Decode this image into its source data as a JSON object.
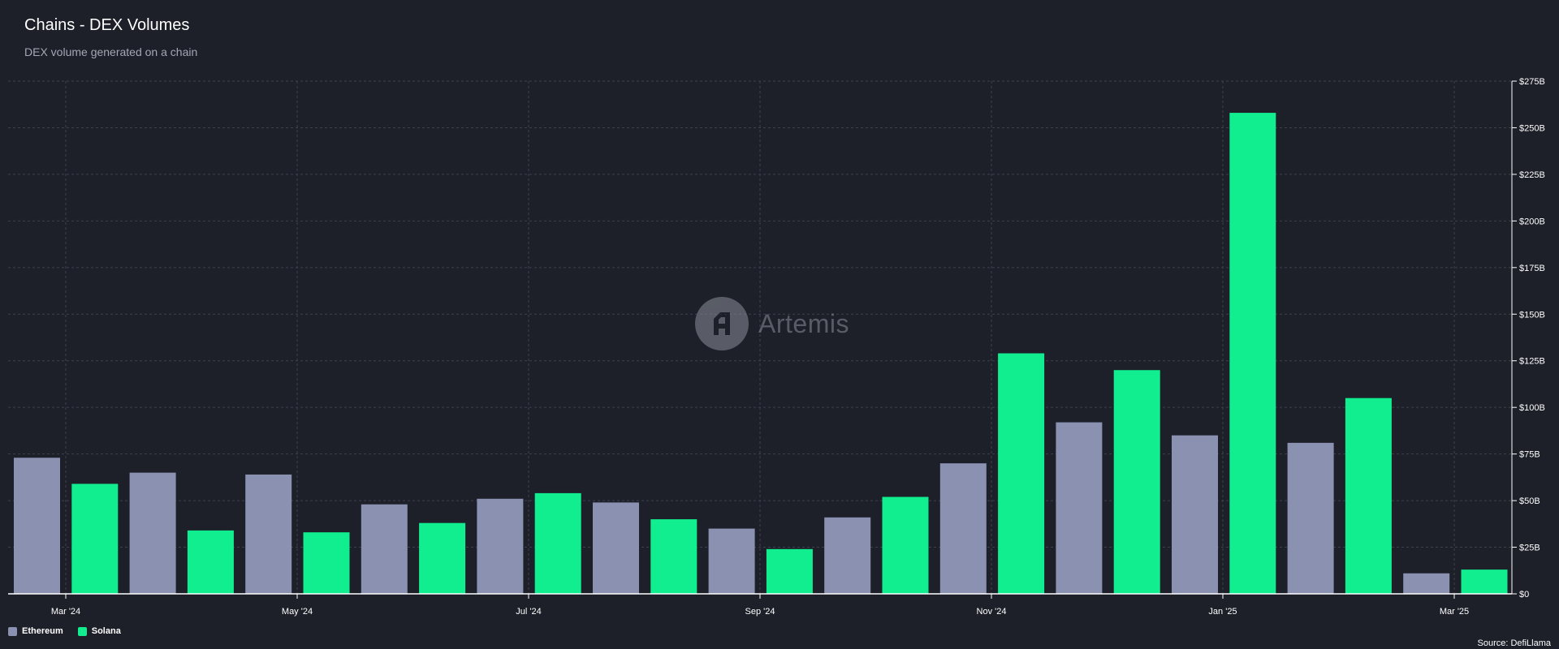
{
  "header": {
    "title": "Chains - DEX Volumes",
    "subtitle": "DEX volume generated on a chain"
  },
  "watermark": {
    "text": "Artemis",
    "icon": "artemis-logo-icon"
  },
  "legend": [
    {
      "label": "Ethereum",
      "color": "#8b91b1"
    },
    {
      "label": "Solana",
      "color": "#11ee8f"
    }
  ],
  "source": "Source: DefiLlama",
  "colors": {
    "background": "#1d1f29",
    "ethereum": "#8b91b1",
    "solana": "#11ee8f"
  },
  "chart_data": {
    "type": "bar",
    "title": "Chains - DEX Volumes",
    "subtitle": "DEX volume generated on a chain",
    "xlabel": "",
    "ylabel": "",
    "ylim": [
      0,
      275
    ],
    "y_unit": "B",
    "y_ticks": [
      "$0",
      "$25B",
      "$50B",
      "$75B",
      "$100B",
      "$125B",
      "$150B",
      "$175B",
      "$200B",
      "$225B",
      "$250B",
      "$275B"
    ],
    "x_ticks": [
      "Mar '24",
      "May '24",
      "Jul '24",
      "Sep '24",
      "Nov '24",
      "Jan '25",
      "Mar '25"
    ],
    "grid": true,
    "legend_position": "bottom-left",
    "bars": [
      {
        "series": "Ethereum",
        "value": 73
      },
      {
        "series": "Solana",
        "value": 59
      },
      {
        "series": "Ethereum",
        "value": 65
      },
      {
        "series": "Solana",
        "value": 34
      },
      {
        "series": "Ethereum",
        "value": 64
      },
      {
        "series": "Solana",
        "value": 33
      },
      {
        "series": "Ethereum",
        "value": 48
      },
      {
        "series": "Solana",
        "value": 38
      },
      {
        "series": "Ethereum",
        "value": 51
      },
      {
        "series": "Solana",
        "value": 54
      },
      {
        "series": "Ethereum",
        "value": 49
      },
      {
        "series": "Solana",
        "value": 40
      },
      {
        "series": "Ethereum",
        "value": 35
      },
      {
        "series": "Solana",
        "value": 24
      },
      {
        "series": "Ethereum",
        "value": 41
      },
      {
        "series": "Solana",
        "value": 52
      },
      {
        "series": "Ethereum",
        "value": 70
      },
      {
        "series": "Solana",
        "value": 129
      },
      {
        "series": "Ethereum",
        "value": 92
      },
      {
        "series": "Solana",
        "value": 120
      },
      {
        "series": "Ethereum",
        "value": 85
      },
      {
        "series": "Solana",
        "value": 258
      },
      {
        "series": "Ethereum",
        "value": 81
      },
      {
        "series": "Solana",
        "value": 105
      },
      {
        "series": "Ethereum",
        "value": 11
      },
      {
        "series": "Solana",
        "value": 13
      }
    ]
  }
}
